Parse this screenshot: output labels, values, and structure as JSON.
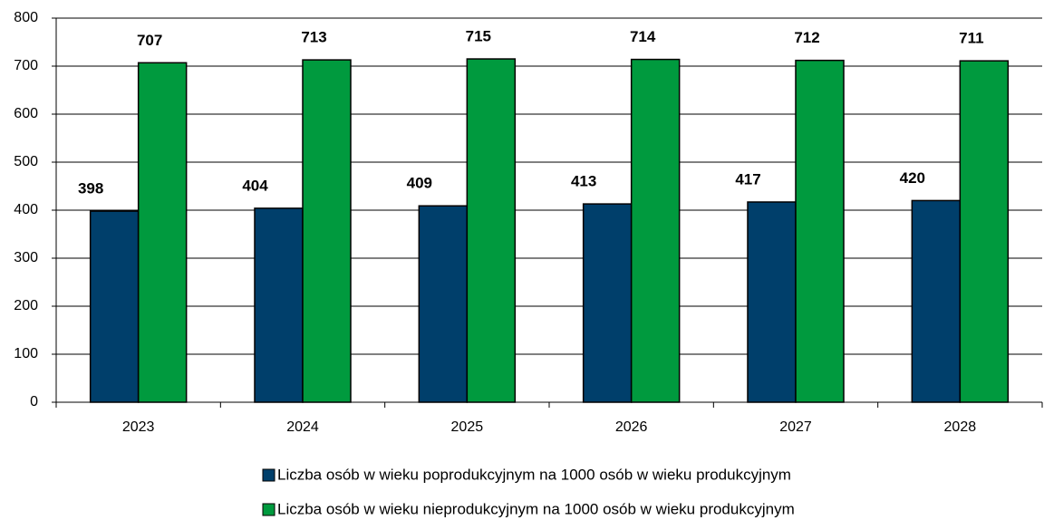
{
  "chart_data": {
    "type": "bar",
    "categories": [
      "2023",
      "2024",
      "2025",
      "2026",
      "2027",
      "2028"
    ],
    "series": [
      {
        "name": "Liczba osób w wieku poprodukcyjnym na 1000 osób w wieku produkcyjnym",
        "color": "#003f6b",
        "values": [
          398,
          404,
          409,
          413,
          417,
          420
        ]
      },
      {
        "name": "Liczba osób w wieku nieprodukcyjnym na 1000 osób w wieku produkcyjnym",
        "color": "#009a3e",
        "values": [
          707,
          713,
          715,
          714,
          712,
          711
        ]
      }
    ],
    "ylim": [
      0,
      800
    ],
    "yticks": [
      0,
      100,
      200,
      300,
      400,
      500,
      600,
      700,
      800
    ],
    "grid": true,
    "legend": "bottom"
  }
}
